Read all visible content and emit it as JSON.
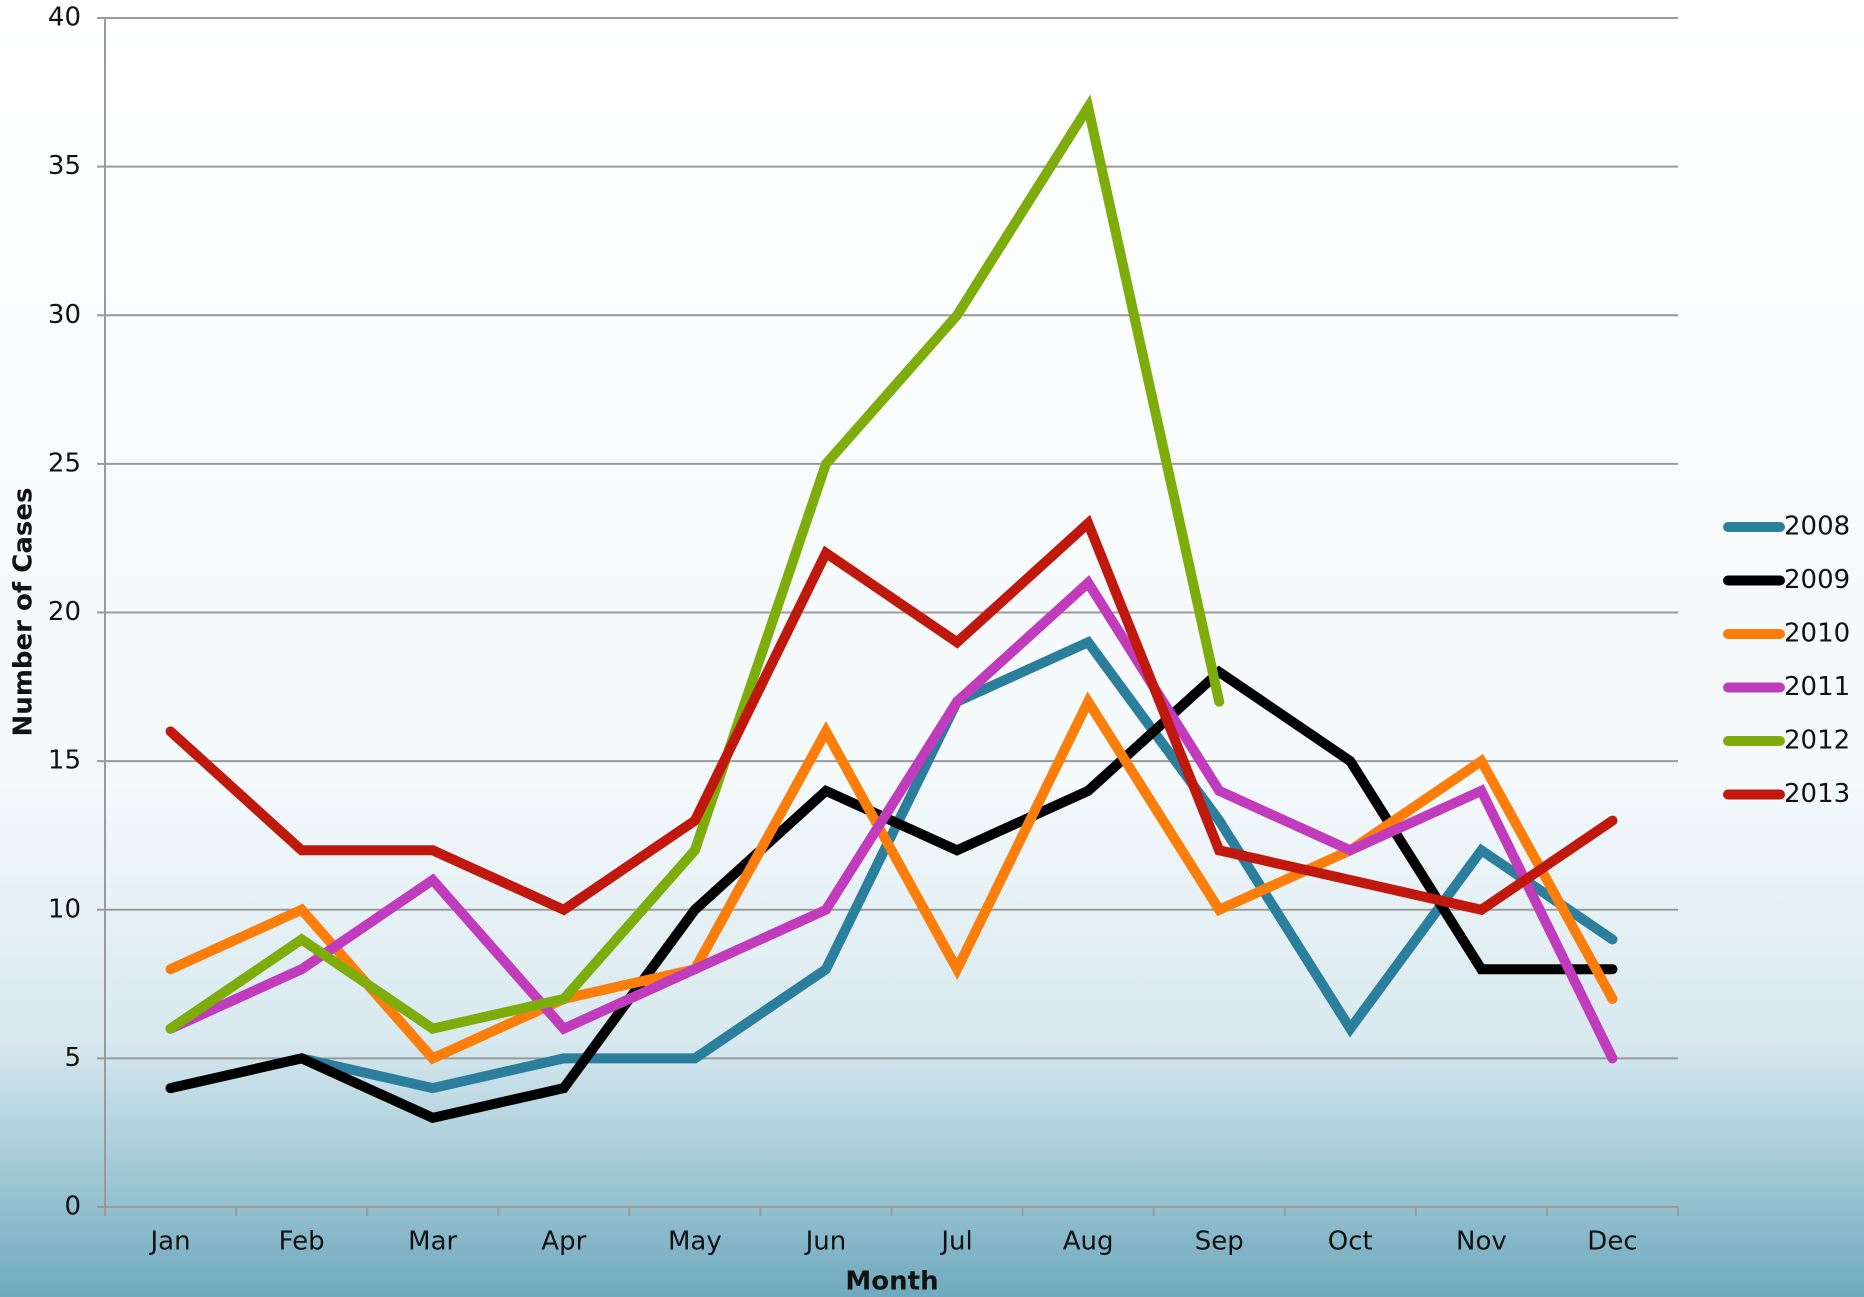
{
  "chart_data": {
    "type": "line",
    "xlabel": "Month",
    "ylabel": "Number of Cases",
    "categories": [
      "Jan",
      "Feb",
      "Mar",
      "Apr",
      "May",
      "Jun",
      "Jul",
      "Aug",
      "Sep",
      "Oct",
      "Nov",
      "Dec"
    ],
    "series": [
      {
        "name": "2008",
        "color": "#2b7e9c",
        "values": [
          4,
          5,
          4,
          5,
          5,
          8,
          17,
          19,
          13,
          6,
          12,
          9
        ]
      },
      {
        "name": "2009",
        "color": "#000000",
        "values": [
          4,
          5,
          3,
          4,
          10,
          14,
          12,
          14,
          18,
          15,
          8,
          8
        ]
      },
      {
        "name": "2010",
        "color": "#fb7d0a",
        "values": [
          8,
          10,
          5,
          7,
          8,
          16,
          8,
          17,
          10,
          12,
          15,
          7
        ]
      },
      {
        "name": "2011",
        "color": "#c13bbd",
        "values": [
          6,
          8,
          11,
          6,
          8,
          10,
          17,
          21,
          14,
          12,
          14,
          5
        ]
      },
      {
        "name": "2012",
        "color": "#7eac0b",
        "values": [
          6,
          9,
          6,
          7,
          12,
          25,
          30,
          37,
          17,
          null,
          null,
          null
        ]
      },
      {
        "name": "2013",
        "color": "#c0180c",
        "values": [
          16,
          12,
          12,
          10,
          13,
          22,
          19,
          23,
          12,
          11,
          10,
          13
        ]
      }
    ],
    "ylim": [
      0,
      40
    ],
    "yticks": [
      0,
      5,
      10,
      15,
      20,
      25,
      30,
      35,
      40
    ],
    "grid": true,
    "legend": "right"
  }
}
